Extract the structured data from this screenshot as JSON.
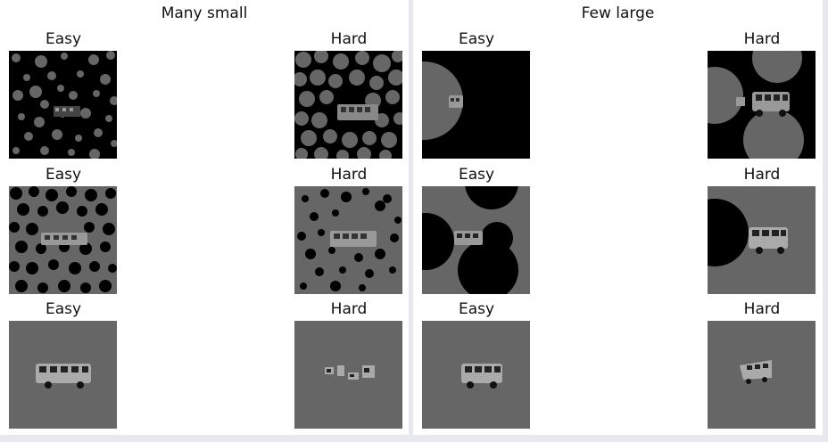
{
  "colors": {
    "background": "#e8e8ef",
    "panel": "#ffffff",
    "black": "#000000",
    "gray": "#666666"
  },
  "panels": [
    {
      "title": "Many small",
      "rows": [
        {
          "easy": {
            "label": "Easy",
            "image": "bus-gray-disks-on-black"
          },
          "hard": {
            "label": "Hard",
            "image": "bus-gray-disks-on-black"
          }
        },
        {
          "easy": {
            "label": "Easy",
            "image": "bus-black-disks-on-gray"
          },
          "hard": {
            "label": "Hard",
            "image": "bus-black-disks-on-gray"
          }
        },
        {
          "easy": {
            "label": "Easy",
            "image": "bus-on-gray"
          },
          "hard": {
            "label": "Hard",
            "image": "bus-fragments-on-gray"
          }
        }
      ]
    },
    {
      "title": "Few large",
      "rows": [
        {
          "easy": {
            "label": "Easy",
            "image": "bus-large-gray-disk-on-black"
          },
          "hard": {
            "label": "Hard",
            "image": "bus-large-gray-disks-on-black"
          }
        },
        {
          "easy": {
            "label": "Easy",
            "image": "bus-large-black-disks-on-gray"
          },
          "hard": {
            "label": "Hard",
            "image": "bus-large-black-disk-on-gray"
          }
        },
        {
          "easy": {
            "label": "Easy",
            "image": "bus-on-gray"
          },
          "hard": {
            "label": "Hard",
            "image": "bus-on-gray"
          }
        }
      ]
    }
  ]
}
